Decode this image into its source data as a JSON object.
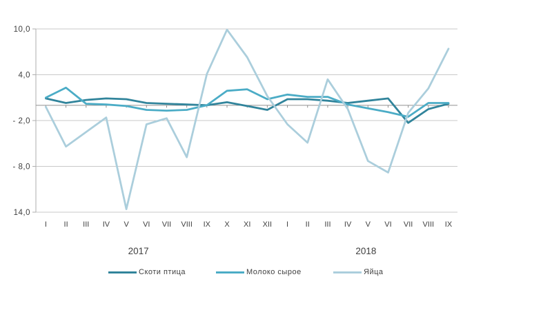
{
  "page": {
    "background": "#ffffff"
  },
  "colors": {
    "gridline": "#c9c9c9",
    "zero_axis": "#8f8f8f",
    "y_axis": "#aeaeae",
    "text": "#404040"
  },
  "chart_data": {
    "type": "line",
    "title": "",
    "xlabel": "",
    "ylabel": "",
    "grid": "horizontal",
    "legend_position": "bottom",
    "x_categories": [
      "I",
      "II",
      "III",
      "IV",
      "V",
      "VI",
      "VII",
      "VIII",
      "IX",
      "X",
      "XI",
      "XII",
      "I",
      "II",
      "III",
      "IV",
      "V",
      "VI",
      "VII",
      "VIII",
      "IX"
    ],
    "year_labels": [
      {
        "label": "2017",
        "position_index": 4.6
      },
      {
        "label": "2018",
        "position_index": 15.9
      }
    ],
    "y_axis": {
      "min": -14,
      "max": 10,
      "ticks": [
        {
          "value": 10,
          "label": "10,0"
        },
        {
          "value": 4,
          "label": "4,0"
        },
        {
          "value": -2,
          "label": "- 2,0"
        },
        {
          "value": -8,
          "label": "- 8,0"
        },
        {
          "value": -14,
          "label": "14,0"
        }
      ]
    },
    "series": [
      {
        "name": "Скоти птица",
        "color": "#31849b",
        "values": [
          0.9,
          0.3,
          0.7,
          0.9,
          0.8,
          0.3,
          0.2,
          0.1,
          0.0,
          0.4,
          -0.1,
          -0.6,
          0.8,
          0.8,
          0.6,
          0.3,
          0.6,
          0.9,
          -2.3,
          -0.5,
          0.2
        ]
      },
      {
        "name": "Молоко сырое",
        "color": "#4bacc6",
        "values": [
          1.0,
          2.3,
          0.2,
          0.1,
          -0.1,
          -0.6,
          -0.7,
          -0.6,
          0.0,
          1.9,
          2.1,
          0.8,
          1.4,
          1.1,
          1.1,
          0.1,
          -0.4,
          -0.9,
          -1.5,
          0.3,
          0.3
        ]
      },
      {
        "name": "Яйца",
        "color": "#abcedc",
        "values": [
          -0.2,
          -5.4,
          -3.5,
          -1.6,
          -13.6,
          -2.5,
          -1.7,
          -6.8,
          4.1,
          9.9,
          6.3,
          1.2,
          -2.5,
          -4.9,
          3.4,
          -0.5,
          -7.3,
          -8.8,
          -1.0,
          2.2,
          7.4
        ]
      }
    ]
  }
}
